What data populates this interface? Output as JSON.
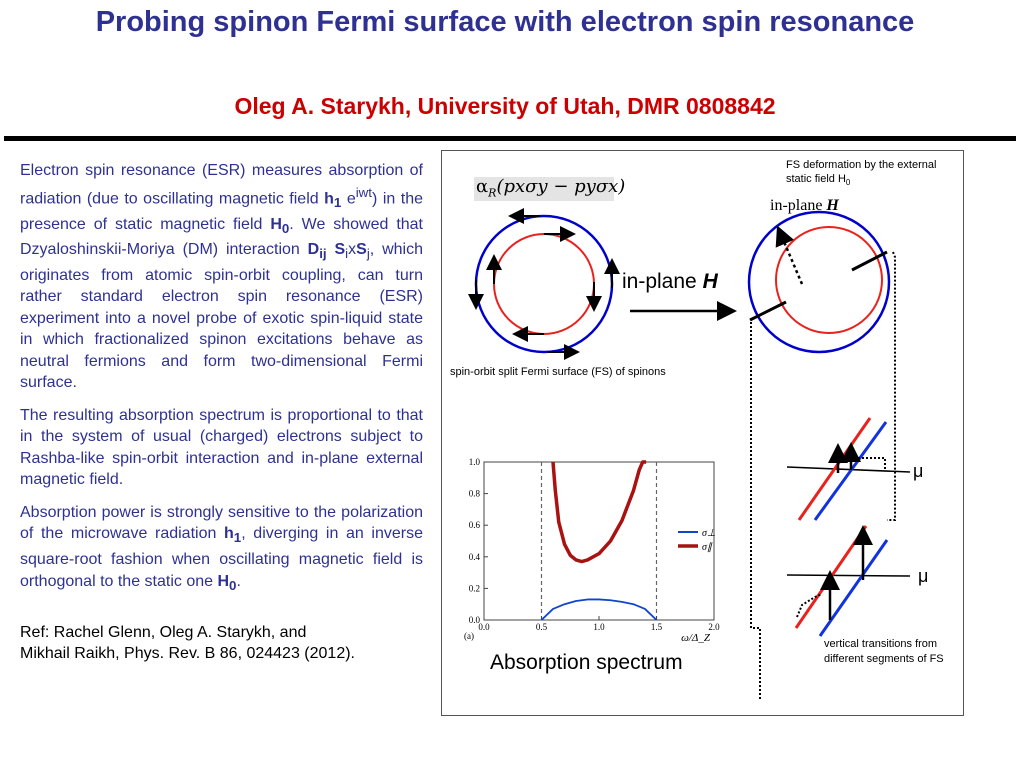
{
  "header": {
    "title": "Probing spinon Fermi surface with electron spin resonance",
    "subtitle": "Oleg A. Starykh, University of Utah,  DMR 0808842"
  },
  "text": {
    "p1_a": "Electron spin resonance (ESR) measures absorption of radiation (due to oscillating magnetic field ",
    "p1_h1": "h",
    "p1_h1_sub": "1",
    "p1_e": " e",
    "p1_e_sup": "iwt",
    "p1_b": ") in the presence of static magnetic field ",
    "p1_H0": "H",
    "p1_H0_sub": "0",
    "p1_c": ". We showed that Dzyaloshinskii-Moriya (DM) interaction ",
    "p1_D": "D",
    "p1_D_sub": "ij",
    "p1_S1": " S",
    "p1_S1_sub": "i",
    "p1_x": "x",
    "p1_S2": "S",
    "p1_S2_sub": "j",
    "p1_d": ", which originates from atomic spin-orbit coupling, can turn rather standard electron spin resonance (ESR) experiment into a novel probe of exotic spin-liquid state in which fractionalized spinon excitations behave as neutral fermions and form two-dimensional Fermi surface.",
    "p2": "The resulting absorption spectrum is proportional to that in the system of usual (charged) electrons subject to Rashba-like spin-orbit interaction and in-plane external magnetic field.",
    "p3_a": "Absorption power is strongly sensitive to the polarization of the microwave radiation ",
    "p3_h1": "h",
    "p3_h1_sub": "1",
    "p3_b": ", diverging in an inverse square-root fashion when oscillating magnetic field is orthogonal to the static one ",
    "p3_H0": "H",
    "p3_H0_sub": "0",
    "p3_c": ".",
    "ref_line1": "Ref: Rachel Glenn, Oleg A. Starykh, and",
    "ref_line2": "Mikhail Raikh, Phys. Rev. B 86, 024423 (2012)."
  },
  "figure": {
    "formula_alpha": "α",
    "formula_sub": "R",
    "formula_rest": "(pxσy − pyσx)",
    "inplane_label": "in-plane ",
    "inplane_H": "H",
    "fs_caption": "spin-orbit split Fermi surface (FS) of spinons",
    "deform_caption": "FS deformation by the external static field H",
    "deform_caption_sub": "0",
    "inplane_small": "in-plane ",
    "inplane_small_H": "H",
    "mu_label": "μ",
    "vt_caption": "vertical transitions from different segments of FS",
    "absorption_label": "Absorption spectrum",
    "colors": {
      "blue": "#0000cc",
      "red": "#e8221c",
      "darkred": "#aa1111"
    }
  },
  "chart_data": {
    "type": "line",
    "xlabel": "ω/Δ_Z",
    "panel_tag": "(a)",
    "xlim": [
      0.0,
      2.0
    ],
    "ylim": [
      0.0,
      1.0
    ],
    "xticks": [
      "0.0",
      "0.5",
      "1.0",
      "1.5",
      "2.0"
    ],
    "yticks": [
      "0.0",
      "0.2",
      "0.4",
      "0.6",
      "0.8",
      "1.0"
    ],
    "dashed_lines_x": [
      0.5,
      1.5
    ],
    "legend": [
      "σ⊥",
      "σ∥"
    ],
    "series": [
      {
        "name": "σ⊥",
        "color": "#1144cc",
        "x": [
          0.5,
          0.6,
          0.7,
          0.8,
          0.9,
          1.0,
          1.1,
          1.2,
          1.3,
          1.4,
          1.5
        ],
        "y": [
          0.0,
          0.07,
          0.1,
          0.12,
          0.13,
          0.13,
          0.125,
          0.115,
          0.1,
          0.07,
          0.0
        ]
      },
      {
        "name": "σ∥",
        "color": "#aa1111",
        "x": [
          0.6,
          0.62,
          0.65,
          0.7,
          0.75,
          0.8,
          0.85,
          0.9,
          1.0,
          1.1,
          1.2,
          1.3,
          1.35,
          1.38,
          1.41
        ],
        "y": [
          1.0,
          0.82,
          0.62,
          0.48,
          0.41,
          0.38,
          0.37,
          0.38,
          0.42,
          0.5,
          0.63,
          0.82,
          0.95,
          1.0,
          1.0
        ]
      }
    ]
  }
}
